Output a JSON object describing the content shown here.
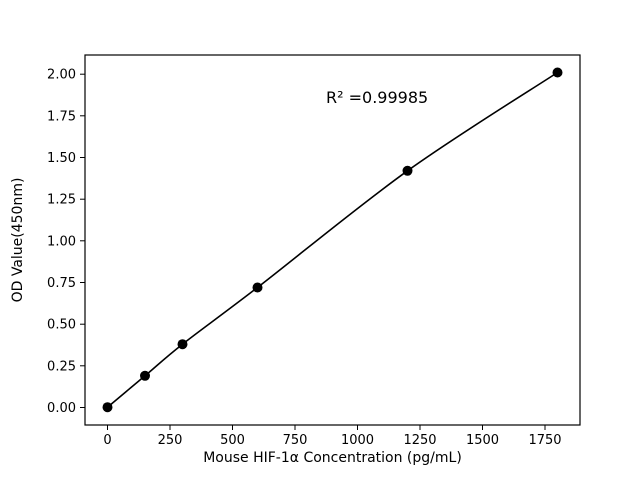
{
  "chart_data": {
    "type": "line",
    "series_name": "standard-curve",
    "x": [
      0,
      150,
      300,
      600,
      1200,
      1800
    ],
    "y": [
      0.002,
      0.19,
      0.38,
      0.72,
      1.42,
      2.01
    ],
    "annotation": "R² =0.99985",
    "xlabel": "Mouse HIF-1α Concentration (pg/mL)",
    "ylabel": "OD Value(450nm)",
    "x_ticks": [
      0,
      250,
      500,
      750,
      1000,
      1250,
      1500,
      1750
    ],
    "y_ticks": [
      0.0,
      0.25,
      0.5,
      0.75,
      1.0,
      1.25,
      1.5,
      1.75,
      2.0
    ],
    "xlim": [
      -90,
      1890
    ],
    "ylim": [
      -0.105,
      2.115
    ],
    "grid": false,
    "legend": "none",
    "line_color": "#000000",
    "marker_color": "#000000",
    "marker_radius": 5,
    "background_color": "#ffffff",
    "annotation_pos_frac": {
      "x": 0.59,
      "y": 0.13
    }
  }
}
